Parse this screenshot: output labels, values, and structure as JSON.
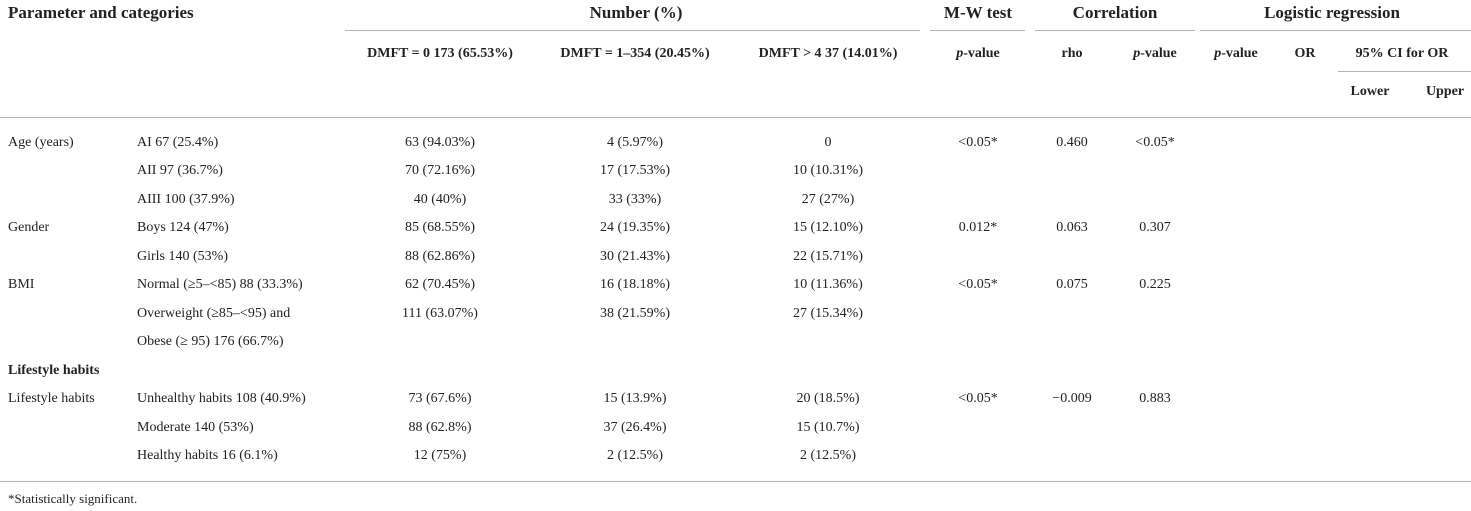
{
  "header": {
    "col_param": "Parameter and categories",
    "col_number": "Number (%)",
    "col_mw": "M-W test",
    "col_corr": "Correlation",
    "col_logreg": "Logistic regression",
    "sub_dmft0": "DMFT = 0 173 (65.53%)",
    "sub_dmft1": "DMFT = 1–354 (20.45%)",
    "sub_dmft4": "DMFT > 4 37 (14.01%)",
    "sub_mw_p": "p",
    "sub_value_suffix": "-value",
    "sub_rho": "rho",
    "sub_corr_p": "p",
    "sub_lr_p": "p",
    "sub_or": "OR",
    "sub_ci": "95% CI for OR",
    "sub_lower": "Lower",
    "sub_upper": "Upper"
  },
  "rows": {
    "age": {
      "param": "Age (years)",
      "r1": {
        "cat": "AI 67 (25.4%)",
        "d0": "63 (94.03%)",
        "d1": "4 (5.97%)",
        "d4": "0"
      },
      "r2": {
        "cat": "AII 97 (36.7%)",
        "d0": "70 (72.16%)",
        "d1": "17 (17.53%)",
        "d4": "10 (10.31%)"
      },
      "r3": {
        "cat": "AIII 100 (37.9%)",
        "d0": "40 (40%)",
        "d1": "33 (33%)",
        "d4": "27 (27%)"
      },
      "mw": "<0.05*",
      "rho": "0.460",
      "p": "<0.05*"
    },
    "gender": {
      "param": "Gender",
      "r1": {
        "cat": "Boys 124 (47%)",
        "d0": "85 (68.55%)",
        "d1": "24 (19.35%)",
        "d4": "15 (12.10%)"
      },
      "r2": {
        "cat": "Girls 140 (53%)",
        "d0": "88 (62.86%)",
        "d1": "30 (21.43%)",
        "d4": "22 (15.71%)"
      },
      "mw": "0.012*",
      "rho": "0.063",
      "p": "0.307"
    },
    "bmi": {
      "param": "BMI",
      "r1": {
        "cat": "Normal (≥5–<85) 88 (33.3%)",
        "d0": "62 (70.45%)",
        "d1": "16 (18.18%)",
        "d4": "10 (11.36%)"
      },
      "r2": {
        "cat": "Overweight (≥85–<95) and",
        "d0": "111 (63.07%)",
        "d1": "38 (21.59%)",
        "d4": "27 (15.34%)"
      },
      "r2b": {
        "cat": "Obese (≥ 95) 176 (66.7%)"
      },
      "mw": "<0.05*",
      "rho": "0.075",
      "p": "0.225"
    },
    "lifestyle_section": "Lifestyle habits",
    "lifestyle": {
      "param": "Lifestyle habits",
      "r1": {
        "cat": "Unhealthy habits 108 (40.9%)",
        "d0": "73 (67.6%)",
        "d1": "15 (13.9%)",
        "d4": "20 (18.5%)"
      },
      "r2": {
        "cat": "Moderate 140 (53%)",
        "d0": "88 (62.8%)",
        "d1": "37 (26.4%)",
        "d4": "15 (10.7%)"
      },
      "r3": {
        "cat": "Healthy habits 16 (6.1%)",
        "d0": "12 (75%)",
        "d1": "2 (12.5%)",
        "d4": "2 (12.5%)"
      },
      "mw": "<0.05*",
      "rho": "−0.009",
      "p": "0.883"
    }
  },
  "footnote": "*Statistically significant."
}
